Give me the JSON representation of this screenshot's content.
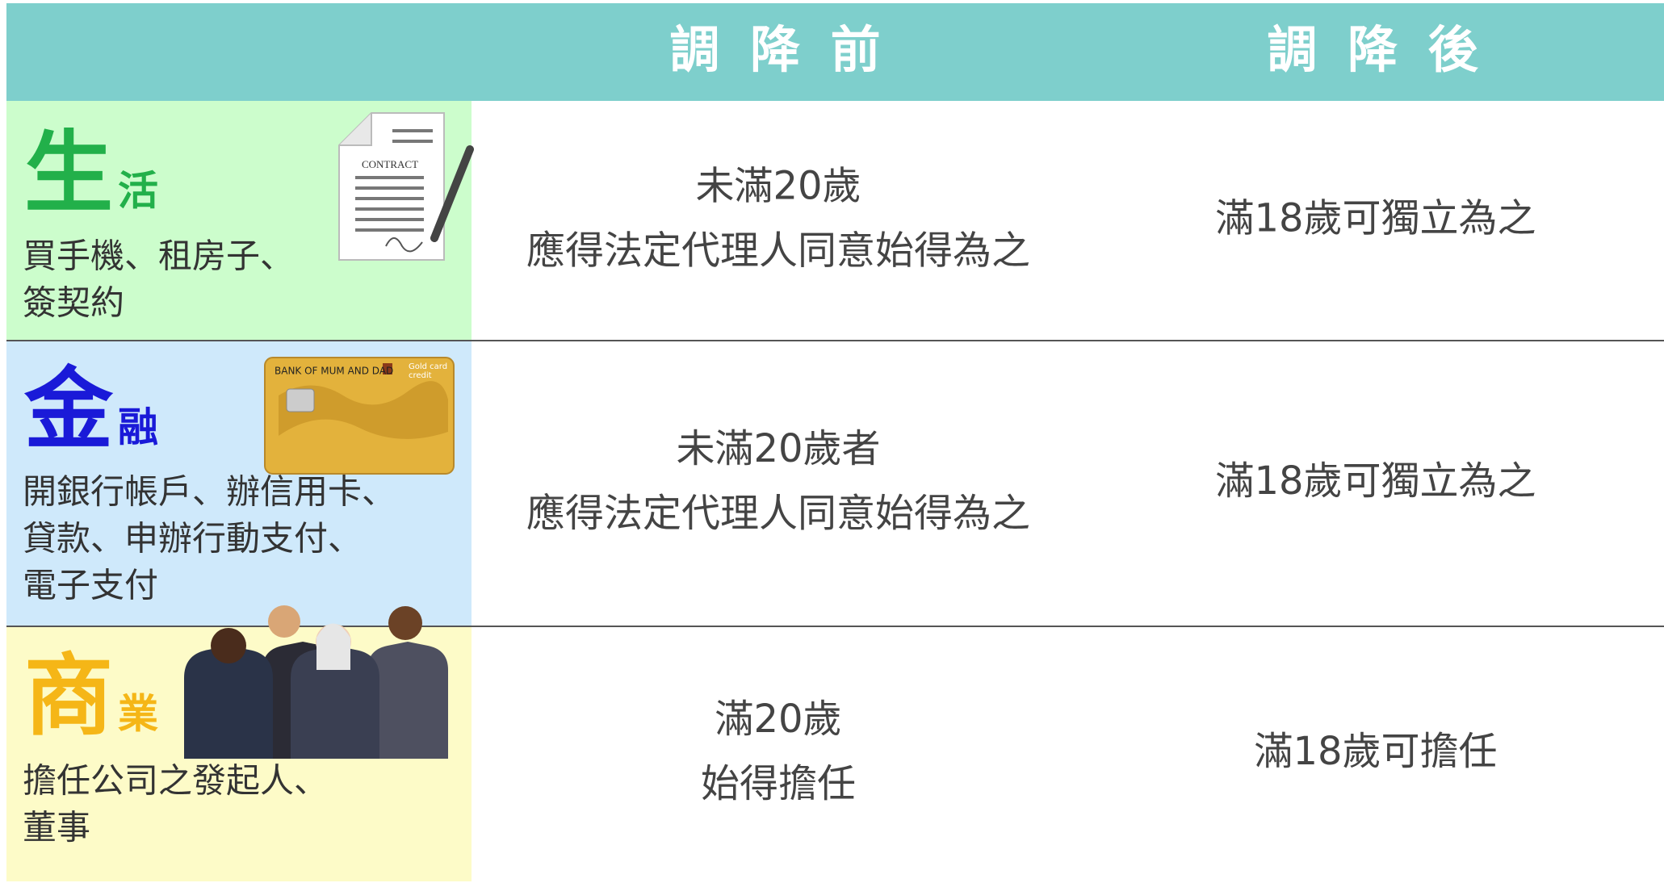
{
  "header": {
    "columns": [
      "調 降 前",
      "調 降 後"
    ]
  },
  "rows": [
    {
      "category": "生",
      "category_suffix": "活",
      "description": [
        "買手機、租房子、",
        "簽契約"
      ],
      "before": [
        "未滿20歲",
        "應得法定代理人同意始得為之"
      ],
      "after": "滿18歲可獨立為之"
    },
    {
      "category": "金",
      "category_suffix": "融",
      "description": [
        "開銀行帳戶、辦信用卡、",
        "貸款、申辦行動支付、",
        "電子支付"
      ],
      "before": [
        "未滿20歲者",
        "應得法定代理人同意始得為之"
      ],
      "after": "滿18歲可獨立為之"
    },
    {
      "category": "商",
      "category_suffix": "業",
      "description": [
        "擔任公司之發起人、",
        "董事"
      ],
      "before": [
        "滿20歲",
        "始得擔任"
      ],
      "after": "滿18歲可擔任"
    }
  ],
  "illustrations": {
    "contract": "CONTRACT",
    "card_bank": "BANK OF MUM AND DAD",
    "card_type": [
      "Gold card",
      "credit"
    ]
  }
}
